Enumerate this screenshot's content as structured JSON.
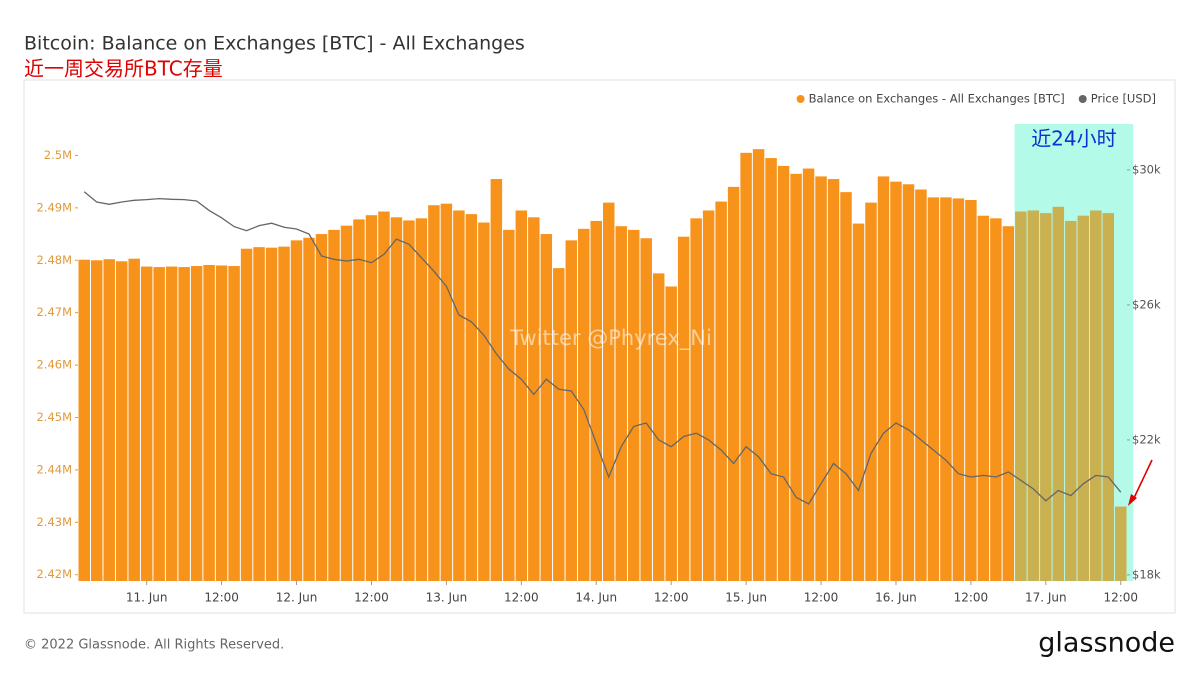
{
  "chart_data": {
    "type": "bar",
    "title": "Bitcoin: Balance on Exchanges [BTC] - All Exchanges",
    "subtitle": "近一周交易所BTC存量",
    "watermark": "Twitter @Phyrex_Ni",
    "footer": "© 2022 Glassnode. All Rights Reserved.",
    "brand": "glassnode",
    "legend": "top-right",
    "highlight": {
      "label": "近24小时",
      "from": "16. Jun 20:00",
      "to": "17. Jun 12:00",
      "color": "#5ff5d0"
    },
    "categories": [
      "10. Jun 14:00",
      "10. Jun 16:00",
      "10. Jun 18:00",
      "10. Jun 20:00",
      "10. Jun 22:00",
      "11. Jun 00:00",
      "11. Jun 02:00",
      "11. Jun 04:00",
      "11. Jun 06:00",
      "11. Jun 08:00",
      "11. Jun 10:00",
      "11. Jun 12:00",
      "11. Jun 14:00",
      "11. Jun 16:00",
      "11. Jun 18:00",
      "11. Jun 20:00",
      "11. Jun 22:00",
      "12. Jun 00:00",
      "12. Jun 02:00",
      "12. Jun 04:00",
      "12. Jun 06:00",
      "12. Jun 08:00",
      "12. Jun 10:00",
      "12. Jun 12:00",
      "12. Jun 14:00",
      "12. Jun 16:00",
      "12. Jun 18:00",
      "12. Jun 20:00",
      "12. Jun 22:00",
      "13. Jun 00:00",
      "13. Jun 02:00",
      "13. Jun 04:00",
      "13. Jun 06:00",
      "13. Jun 08:00",
      "13. Jun 10:00",
      "13. Jun 12:00",
      "13. Jun 14:00",
      "13. Jun 16:00",
      "13. Jun 18:00",
      "13. Jun 20:00",
      "13. Jun 22:00",
      "14. Jun 00:00",
      "14. Jun 02:00",
      "14. Jun 04:00",
      "14. Jun 06:00",
      "14. Jun 08:00",
      "14. Jun 10:00",
      "14. Jun 12:00",
      "14. Jun 14:00",
      "14. Jun 16:00",
      "14. Jun 18:00",
      "14. Jun 20:00",
      "14. Jun 22:00",
      "15. Jun 00:00",
      "15. Jun 02:00",
      "15. Jun 04:00",
      "15. Jun 06:00",
      "15. Jun 08:00",
      "15. Jun 10:00",
      "15. Jun 12:00",
      "15. Jun 14:00",
      "15. Jun 16:00",
      "15. Jun 18:00",
      "15. Jun 20:00",
      "15. Jun 22:00",
      "16. Jun 00:00",
      "16. Jun 02:00",
      "16. Jun 04:00",
      "16. Jun 06:00",
      "16. Jun 08:00",
      "16. Jun 10:00",
      "16. Jun 12:00",
      "16. Jun 14:00",
      "16. Jun 16:00",
      "16. Jun 18:00",
      "16. Jun 20:00",
      "16. Jun 22:00",
      "17. Jun 00:00",
      "17. Jun 02:00",
      "17. Jun 04:00",
      "17. Jun 06:00",
      "17. Jun 08:00",
      "17. Jun 10:00",
      "17. Jun 12:00"
    ],
    "series": [
      {
        "name": "Balance on Exchanges - All Exchanges [BTC]",
        "color": "#f7931a",
        "values": [
          2480100,
          2480000,
          2480200,
          2479800,
          2480300,
          2478800,
          2478700,
          2478800,
          2478700,
          2478900,
          2479100,
          2479000,
          2478900,
          2482200,
          2482500,
          2482400,
          2482600,
          2483800,
          2484300,
          2485000,
          2485800,
          2486600,
          2487800,
          2488600,
          2489300,
          2488200,
          2487600,
          2488000,
          2490500,
          2490800,
          2489500,
          2488800,
          2487200,
          2495500,
          2485800,
          2489500,
          2488200,
          2485000,
          2478500,
          2483800,
          2486000,
          2487500,
          2491000,
          2486500,
          2485800,
          2484200,
          2477500,
          2475000,
          2484500,
          2488000,
          2489500,
          2491200,
          2494000,
          2500500,
          2501200,
          2499500,
          2498000,
          2496500,
          2497500,
          2496000,
          2495500,
          2493000,
          2487000,
          2491000,
          2496000,
          2495000,
          2494500,
          2493500,
          2492000,
          2492000,
          2491800,
          2491500,
          2488500,
          2488000,
          2486500,
          2489300,
          2489500,
          2489000,
          2490200,
          2487500,
          2488500,
          2489500,
          2489000,
          2433000
        ]
      },
      {
        "name": "Price [USD]",
        "color": "#666666",
        "axis": "y2",
        "values": [
          29350,
          29050,
          28980,
          29050,
          29100,
          29120,
          29150,
          29130,
          29120,
          29080,
          28800,
          28580,
          28320,
          28200,
          28350,
          28420,
          28300,
          28250,
          28100,
          27450,
          27350,
          27300,
          27350,
          27250,
          27500,
          27950,
          27800,
          27400,
          27000,
          26550,
          25700,
          25500,
          25100,
          24550,
          24100,
          23800,
          23350,
          23800,
          23500,
          23450,
          22900,
          21900,
          20900,
          21800,
          22400,
          22500,
          22000,
          21800,
          22100,
          22200,
          22000,
          21700,
          21300,
          21800,
          21500,
          21000,
          20900,
          20300,
          20100,
          20700,
          21300,
          21000,
          20500,
          21600,
          22200,
          22500,
          22300,
          22000,
          21700,
          21400,
          21000,
          20900,
          20950,
          20900,
          21050,
          20800,
          20550,
          20200,
          20500,
          20350,
          20700,
          20950,
          20900,
          20450
        ]
      }
    ],
    "ylim": [
      2418800,
      2506000
    ],
    "yticks": [
      {
        "value": 2420000,
        "label": "2.42M"
      },
      {
        "value": 2430000,
        "label": "2.43M"
      },
      {
        "value": 2440000,
        "label": "2.44M"
      },
      {
        "value": 2450000,
        "label": "2.45M"
      },
      {
        "value": 2460000,
        "label": "2.46M"
      },
      {
        "value": 2470000,
        "label": "2.47M"
      },
      {
        "value": 2480000,
        "label": "2.48M"
      },
      {
        "value": 2490000,
        "label": "2.49M"
      },
      {
        "value": 2500000,
        "label": "2.5M"
      }
    ],
    "y2lim": [
      17820,
      31360
    ],
    "y2ticks": [
      {
        "value": 18000,
        "label": "$18k"
      },
      {
        "value": 22000,
        "label": "$22k"
      },
      {
        "value": 26000,
        "label": "$26k"
      },
      {
        "value": 30000,
        "label": "$30k"
      }
    ],
    "xticks": [
      {
        "value": "11. Jun 00:00",
        "label": "11. Jun"
      },
      {
        "value": "11. Jun 12:00",
        "label": "12:00"
      },
      {
        "value": "12. Jun 00:00",
        "label": "12. Jun"
      },
      {
        "value": "12. Jun 12:00",
        "label": "12:00"
      },
      {
        "value": "13. Jun 00:00",
        "label": "13. Jun"
      },
      {
        "value": "13. Jun 12:00",
        "label": "12:00"
      },
      {
        "value": "14. Jun 00:00",
        "label": "14. Jun"
      },
      {
        "value": "14. Jun 12:00",
        "label": "12:00"
      },
      {
        "value": "15. Jun 00:00",
        "label": "15. Jun"
      },
      {
        "value": "15. Jun 12:00",
        "label": "12:00"
      },
      {
        "value": "16. Jun 00:00",
        "label": "16. Jun"
      },
      {
        "value": "16. Jun 12:00",
        "label": "12:00"
      },
      {
        "value": "17. Jun 00:00",
        "label": "17. Jun"
      },
      {
        "value": "17. Jun 12:00",
        "label": "12:00"
      }
    ]
  }
}
